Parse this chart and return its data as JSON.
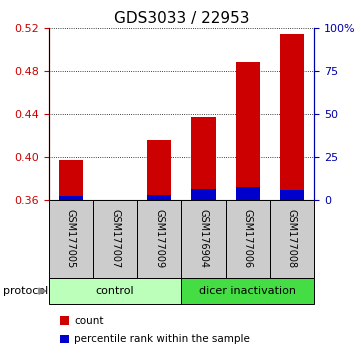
{
  "title": "GDS3033 / 22953",
  "samples": [
    "GSM177005",
    "GSM177007",
    "GSM177009",
    "GSM176904",
    "GSM177006",
    "GSM177008"
  ],
  "count_values": [
    0.397,
    0.36,
    0.416,
    0.437,
    0.489,
    0.515
  ],
  "percentile_values": [
    0.3635,
    0.36,
    0.3645,
    0.37,
    0.3725,
    0.369
  ],
  "baseline": 0.36,
  "ylim_left": [
    0.36,
    0.52
  ],
  "yticks_left": [
    0.36,
    0.4,
    0.44,
    0.48,
    0.52
  ],
  "ylim_right": [
    0,
    100
  ],
  "yticks_right": [
    0,
    25,
    50,
    75,
    100
  ],
  "yticklabels_right": [
    "0",
    "25",
    "50",
    "75",
    "100%"
  ],
  "bar_color_red": "#cc0000",
  "bar_color_blue": "#0000cc",
  "bar_width": 0.55,
  "protocol_groups": [
    {
      "label": "control",
      "start": 0,
      "end": 2,
      "color": "#bbffbb"
    },
    {
      "label": "dicer inactivation",
      "start": 3,
      "end": 5,
      "color": "#44dd44"
    }
  ],
  "protocol_label": "protocol",
  "legend_items": [
    {
      "color": "#cc0000",
      "label": "count"
    },
    {
      "color": "#0000cc",
      "label": "percentile rank within the sample"
    }
  ],
  "left_axis_color": "#cc0000",
  "right_axis_color": "#0000aa",
  "title_fontsize": 11,
  "tick_fontsize": 8,
  "sample_fontsize": 7,
  "protocol_fontsize": 8,
  "legend_fontsize": 7.5
}
